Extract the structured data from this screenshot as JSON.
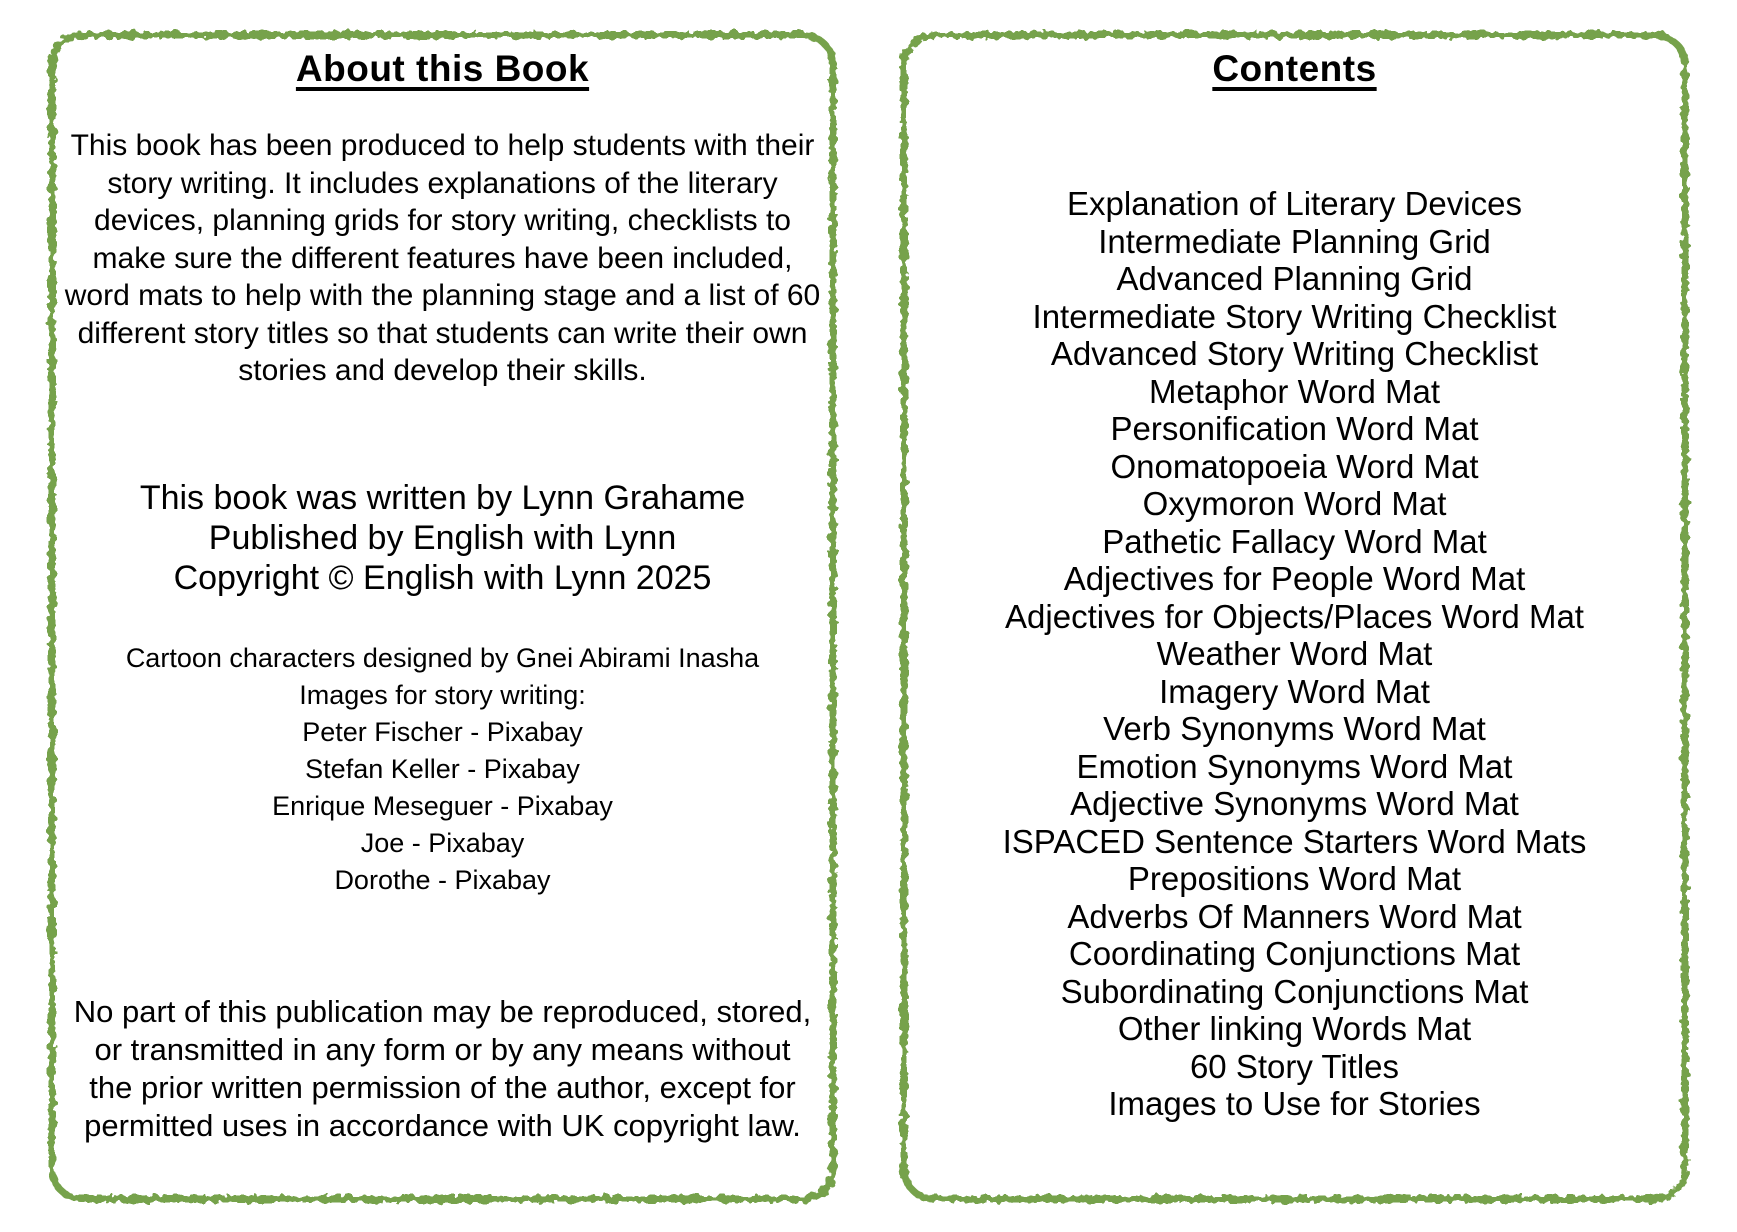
{
  "colors": {
    "border_green": "#76a24b",
    "text": "#000000",
    "page_background": "#ffffff"
  },
  "pages": {
    "about": {
      "title": "About this Book",
      "intro_paragraph": "This book has been produced to help students with their\nstory writing. It includes explanations of the literary\ndevices, planning grids for story writing, checklists to\nmake sure the different features have been included,\nword mats to help with the planning stage and a list of 60\ndifferent story titles so that students can write their own\nstories and develop their skills.",
      "publication_lines": [
        "This book was written by Lynn Grahame",
        "Published by English with Lynn",
        "Copyright © English with Lynn 2025"
      ],
      "credit_lines": [
        "Cartoon characters designed by Gnei Abirami Inasha",
        "Images for story writing:",
        "Peter Fischer - Pixabay",
        "Stefan Keller - Pixabay",
        "Enrique Meseguer - Pixabay",
        "Joe - Pixabay",
        "Dorothe - Pixabay"
      ],
      "copyright_notice": "No part of this publication may be reproduced, stored,\nor transmitted in any form or by any means without\nthe prior written permission of the author, except for\npermitted uses in accordance with UK copyright law."
    },
    "contents": {
      "title": "Contents",
      "entries": [
        "Explanation of Literary Devices",
        "Intermediate Planning Grid",
        "Advanced Planning Grid",
        "Intermediate Story Writing Checklist",
        "Advanced Story Writing Checklist",
        "Metaphor Word Mat",
        "Personification Word Mat",
        "Onomatopoeia Word Mat",
        "Oxymoron Word Mat",
        "Pathetic Fallacy Word Mat",
        "Adjectives for People Word Mat",
        "Adjectives for Objects/Places Word Mat",
        "Weather Word Mat",
        "Imagery Word Mat",
        "Verb Synonyms Word Mat",
        "Emotion Synonyms Word Mat",
        "Adjective Synonyms Word Mat",
        "ISPACED Sentence Starters Word Mats",
        "Prepositions Word Mat",
        "Adverbs Of Manners Word Mat",
        "Coordinating Conjunctions Mat",
        "Subordinating Conjunctions Mat",
        "Other linking Words Mat",
        "60 Story Titles",
        "Images to Use for Stories"
      ]
    }
  }
}
